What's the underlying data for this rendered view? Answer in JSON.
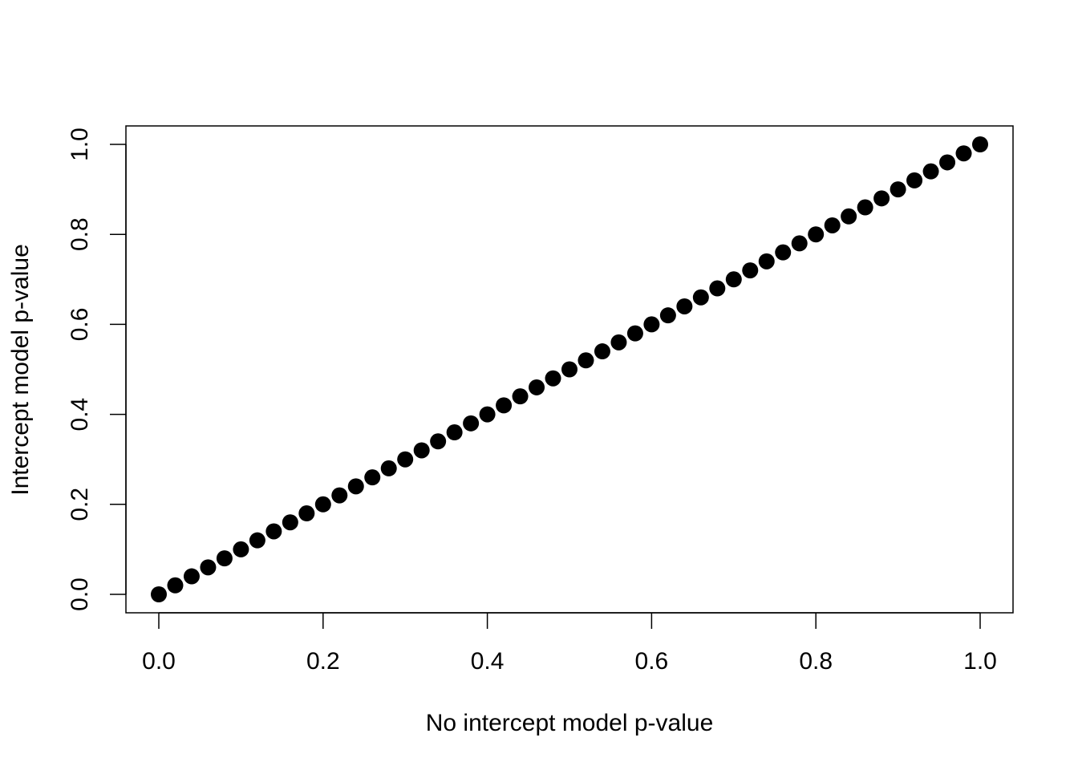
{
  "chart_data": {
    "type": "scatter",
    "title": "",
    "xlabel": "No intercept model p-value",
    "ylabel": "Intercept model p-value",
    "xlim": [
      0.0,
      1.0
    ],
    "ylim": [
      0.0,
      1.0
    ],
    "x_ticks": [
      "0.0",
      "0.2",
      "0.4",
      "0.6",
      "0.8",
      "1.0"
    ],
    "y_ticks": [
      "0.0",
      "0.2",
      "0.4",
      "0.6",
      "0.8",
      "1.0"
    ],
    "grid": false,
    "legend": "none",
    "marker_color": "#000000",
    "series": [
      {
        "x": [
          0.0,
          0.02,
          0.04,
          0.06,
          0.08,
          0.1,
          0.12,
          0.14,
          0.16,
          0.18,
          0.2,
          0.22,
          0.24,
          0.26,
          0.28,
          0.3,
          0.32,
          0.34,
          0.36,
          0.38,
          0.4,
          0.42,
          0.44,
          0.46,
          0.48,
          0.5,
          0.52,
          0.54,
          0.56,
          0.58,
          0.6,
          0.62,
          0.64,
          0.66,
          0.68,
          0.7,
          0.72,
          0.74,
          0.76,
          0.78,
          0.8,
          0.82,
          0.84,
          0.86,
          0.88,
          0.9,
          0.92,
          0.94,
          0.96,
          0.98,
          1.0
        ],
        "y": [
          0.0,
          0.02,
          0.04,
          0.06,
          0.08,
          0.1,
          0.12,
          0.14,
          0.16,
          0.18,
          0.2,
          0.22,
          0.24,
          0.26,
          0.28,
          0.3,
          0.32,
          0.34,
          0.36,
          0.38,
          0.4,
          0.42,
          0.44,
          0.46,
          0.48,
          0.5,
          0.52,
          0.54,
          0.56,
          0.58,
          0.6,
          0.62,
          0.64,
          0.66,
          0.68,
          0.7,
          0.72,
          0.74,
          0.76,
          0.78,
          0.8,
          0.82,
          0.84,
          0.86,
          0.88,
          0.9,
          0.92,
          0.94,
          0.96,
          0.98,
          1.0
        ]
      }
    ]
  }
}
